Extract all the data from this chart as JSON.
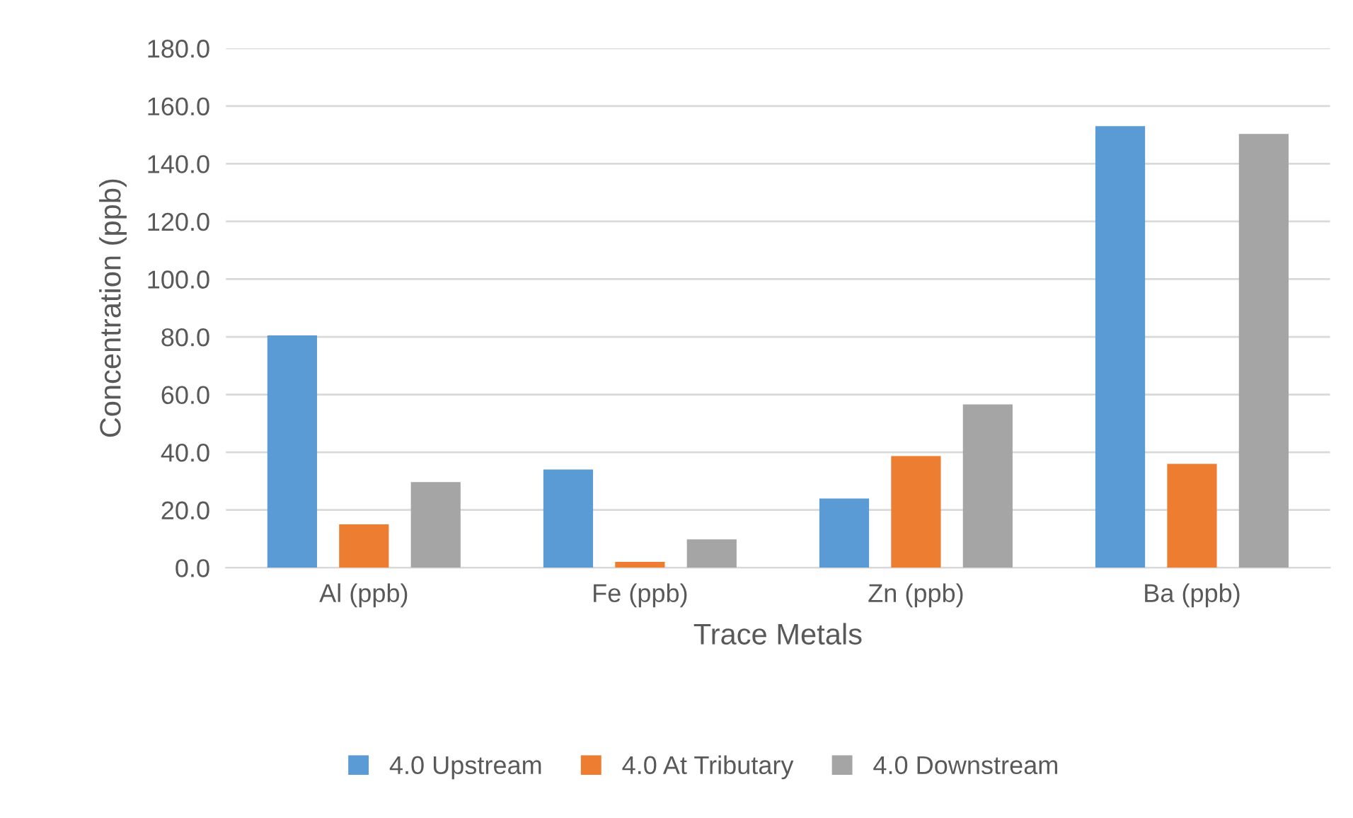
{
  "chart_data": {
    "type": "bar",
    "xlabel": "Trace Metals",
    "ylabel": "Concentration (ppb)",
    "categories": [
      "Al (ppb)",
      "Fe (ppb)",
      "Zn (ppb)",
      "Ba (ppb)"
    ],
    "series": [
      {
        "name": "4.0 Upstream",
        "color": "#5b9bd5",
        "values": [
          80.5,
          34,
          24,
          153
        ]
      },
      {
        "name": "4.0 At Tributary",
        "color": "#ed7d31",
        "values": [
          15,
          2,
          38.7,
          36
        ]
      },
      {
        "name": "4.0 Downstream",
        "color": "#a5a5a5",
        "values": [
          29.7,
          9.8,
          56.6,
          150.3
        ]
      }
    ],
    "ylim": [
      0,
      180
    ],
    "yticks": [
      {
        "value": 0,
        "label": "0.0"
      },
      {
        "value": 20,
        "label": "20.0"
      },
      {
        "value": 40,
        "label": "40.0"
      },
      {
        "value": 60,
        "label": "60.0"
      },
      {
        "value": 80,
        "label": "80.0"
      },
      {
        "value": 100,
        "label": "100.0"
      },
      {
        "value": 120,
        "label": "120.0"
      },
      {
        "value": 140,
        "label": "140.0"
      },
      {
        "value": 160,
        "label": "160.0"
      },
      {
        "value": 180,
        "label": "180.0"
      }
    ],
    "grid": "y",
    "legend": "bottom"
  }
}
